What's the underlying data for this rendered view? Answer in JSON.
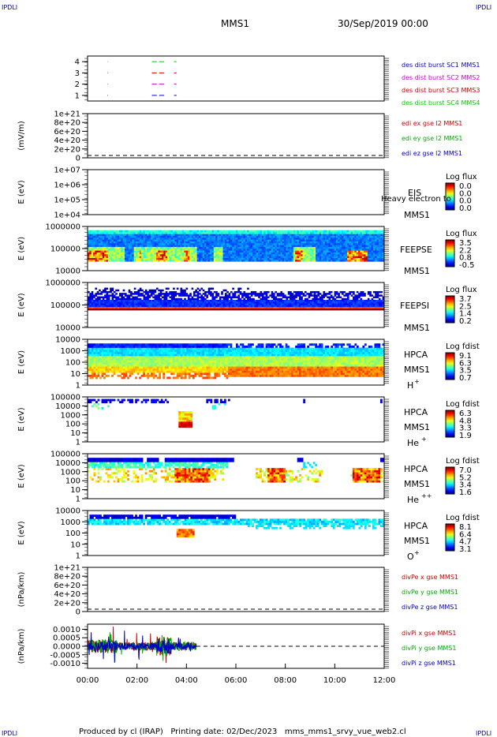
{
  "corner_logo": "IPDLI",
  "header": {
    "mission": "MMS1",
    "date": "30/Sep/2019 00:00"
  },
  "footer": "Produced by cl (IRAP)   Printing date: 02/Dec/2023   mms_mms1_srvy_vue_web2.cl",
  "chart_data": [
    {
      "type": "scatter",
      "id": "burst",
      "yticks": [
        "1",
        "2",
        "3",
        "4"
      ],
      "ylim": [
        0.5,
        4.5
      ],
      "legend": [
        {
          "label": "des dist burst SC1 MMS1",
          "color": "#0000cc"
        },
        {
          "label": "des dist burst SC2 MMS2",
          "color": "#cc00cc"
        },
        {
          "label": "des dist burst SC3 MMS3",
          "color": "#cc0000"
        },
        {
          "label": "des dist burst SC4 MMS4",
          "color": "#00cc00"
        }
      ],
      "series": [
        {
          "y": 1,
          "color": "#0000cc",
          "segments": [
            [
              0.8,
              0.82
            ],
            [
              2.6,
              2.8
            ],
            [
              2.9,
              3.1
            ],
            [
              3.5,
              3.6
            ]
          ]
        },
        {
          "y": 2,
          "color": "#cc00cc",
          "segments": [
            [
              0.8,
              0.82
            ],
            [
              2.6,
              2.8
            ],
            [
              2.9,
              3.1
            ],
            [
              3.5,
              3.6
            ]
          ]
        },
        {
          "y": 3,
          "color": "#cc0000",
          "segments": [
            [
              0.8,
              0.82
            ],
            [
              2.6,
              2.8
            ],
            [
              2.9,
              3.1
            ],
            [
              3.5,
              3.6
            ]
          ]
        },
        {
          "y": 4,
          "color": "#00cc00",
          "segments": [
            [
              0.8,
              0.82
            ],
            [
              2.6,
              2.8
            ],
            [
              2.9,
              3.1
            ],
            [
              3.5,
              3.6
            ]
          ]
        }
      ]
    },
    {
      "type": "line",
      "id": "edi",
      "ylabel": "(mV/m)",
      "yticks": [
        "0",
        "2e+20",
        "4e+20",
        "6e+20",
        "8e+20",
        "1e+21"
      ],
      "legend": [
        {
          "label": "edi ex gse l2 MMS1",
          "color": "#cc0000"
        },
        {
          "label": "edi ey gse l2 MMS1",
          "color": "#00aa00"
        },
        {
          "label": "edi ez gse l2 MMS1",
          "color": "#0000cc"
        }
      ]
    },
    {
      "type": "heatmap",
      "id": "eis",
      "ylabel": "E (eV)",
      "yticks": [
        "1e+04",
        "1e+05",
        "1e+06",
        "1e+07"
      ],
      "instrument": "EIS",
      "spacecraft": "MMS1",
      "overlay_text": "Heavy electron to",
      "colorbar_title": "Log flux",
      "colorbar_ticks": [
        "0.0",
        "0.0",
        "0.0",
        "0.0"
      ]
    },
    {
      "type": "heatmap",
      "id": "feepse",
      "ylabel": "E (eV)",
      "yticks": [
        "10000",
        "100000",
        "1000000"
      ],
      "instrument": "FEEPSE",
      "spacecraft": "MMS1",
      "colorbar_title": "Log flux",
      "colorbar_ticks": [
        "3.5",
        "2.2",
        "0.8",
        "-0.5"
      ]
    },
    {
      "type": "heatmap",
      "id": "feepsi",
      "ylabel": "E (eV)",
      "yticks": [
        "10000",
        "100000",
        "1000000"
      ],
      "instrument": "FEEPSI",
      "spacecraft": "MMS1",
      "colorbar_title": "Log flux",
      "colorbar_ticks": [
        "3.7",
        "2.5",
        "1.4",
        "0.2"
      ]
    },
    {
      "type": "heatmap",
      "id": "hpca_h",
      "ylabel": "E (eV)",
      "yticks": [
        "1",
        "10",
        "100",
        "1000",
        "10000"
      ],
      "instrument": "HPCA",
      "spacecraft": "MMS1",
      "species": "H",
      "charge": "+",
      "colorbar_title": "Log fdist",
      "colorbar_ticks": [
        "9.1",
        "6.3",
        "3.5",
        "0.7"
      ]
    },
    {
      "type": "heatmap",
      "id": "hpca_he",
      "ylabel": "E (eV)",
      "yticks": [
        "1",
        "10",
        "100",
        "1000",
        "10000",
        "100000"
      ],
      "instrument": "HPCA",
      "spacecraft": "MMS1",
      "species": "He",
      "charge": "+",
      "colorbar_title": "Log fdist",
      "colorbar_ticks": [
        "6.3",
        "4.8",
        "3.3",
        "1.9"
      ]
    },
    {
      "type": "heatmap",
      "id": "hpca_hepp",
      "ylabel": "E (eV)",
      "yticks": [
        "1",
        "10",
        "100",
        "1000",
        "10000",
        "100000"
      ],
      "instrument": "HPCA",
      "spacecraft": "MMS1",
      "species": "He",
      "charge": "++",
      "colorbar_title": "Log fdist",
      "colorbar_ticks": [
        "7.0",
        "5.2",
        "3.4",
        "1.6"
      ]
    },
    {
      "type": "heatmap",
      "id": "hpca_o",
      "ylabel": "E (eV)",
      "yticks": [
        "1",
        "10",
        "100",
        "1000",
        "10000"
      ],
      "instrument": "HPCA",
      "spacecraft": "MMS1",
      "species": "O",
      "charge": "+",
      "colorbar_title": "Log fdist",
      "colorbar_ticks": [
        "8.1",
        "6.4",
        "4.7",
        "3.1"
      ]
    },
    {
      "type": "line",
      "id": "divpe",
      "ylabel": "(nPa/km)",
      "yticks": [
        "0",
        "2e+20",
        "4e+20",
        "6e+20",
        "8e+20",
        "1e+21"
      ],
      "legend": [
        {
          "label": "divPe x gse MMS1",
          "color": "#cc0000"
        },
        {
          "label": "divPe y gse MMS1",
          "color": "#00aa00"
        },
        {
          "label": "divPe z gse MMS1",
          "color": "#0000cc"
        }
      ]
    },
    {
      "type": "line",
      "id": "divpi",
      "ylabel": "(nPa/km)",
      "yticks": [
        "-0.0010",
        "-0.0005",
        "0.0000",
        "0.0005",
        "0.0010"
      ],
      "ylim": [
        -0.0013,
        0.0013
      ],
      "legend": [
        {
          "label": "divPi x gse MMS1",
          "color": "#cc0000"
        },
        {
          "label": "divPi y gse MMS1",
          "color": "#00aa00"
        },
        {
          "label": "divPi z gse MMS1",
          "color": "#0000cc"
        }
      ]
    }
  ],
  "xaxis": {
    "ticks": [
      "00:00",
      "02:00",
      "04:00",
      "06:00",
      "08:00",
      "10:00",
      "12:00"
    ],
    "range_hours": [
      0,
      12
    ]
  }
}
